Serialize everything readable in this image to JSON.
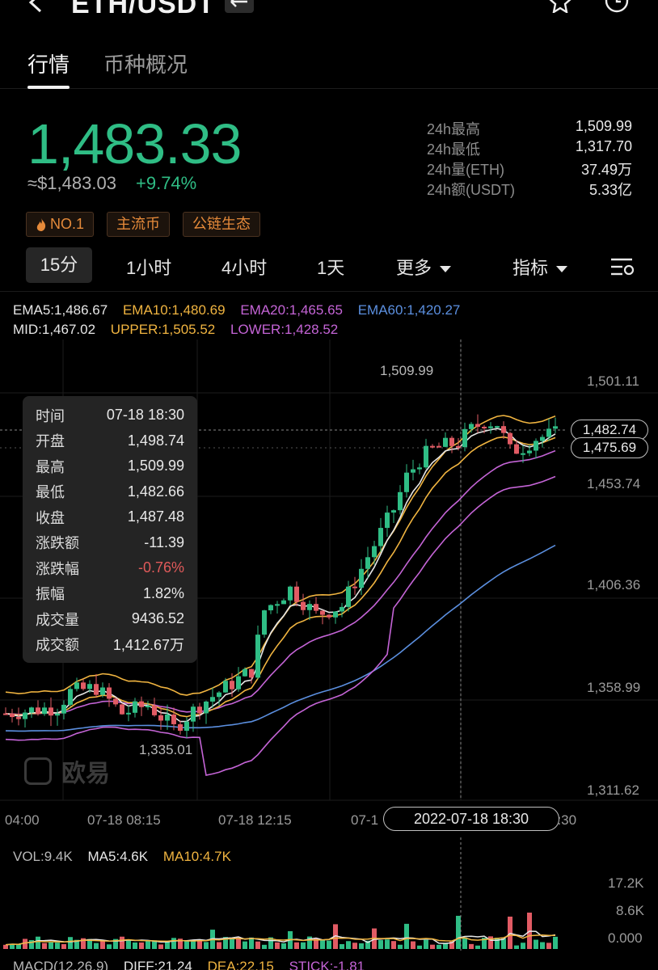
{
  "header": {
    "title": "ETH/USDT"
  },
  "tabs": [
    {
      "label": "行情"
    },
    {
      "label": "币种概况"
    }
  ],
  "price": {
    "last": "1,483.33",
    "fiat": "≈$1,483.03",
    "change": "+9.74%"
  },
  "stats": [
    {
      "label": "24h最高",
      "value": "1,509.99"
    },
    {
      "label": "24h最低",
      "value": "1,317.70"
    },
    {
      "label": "24h量(ETH)",
      "value": "37.49万"
    },
    {
      "label": "24h额(USDT)",
      "value": "5.33亿"
    }
  ],
  "tags": [
    {
      "label": "NO.1"
    },
    {
      "label": "主流币"
    },
    {
      "label": "公链生态"
    }
  ],
  "intervals": {
    "m15": "15分",
    "h1": "1小时",
    "h4": "4小时",
    "d1": "1天",
    "more": "更多",
    "indicators": "指标"
  },
  "indicators": {
    "ema5": "EMA5:1,486.67",
    "ema10": "EMA10:1,480.69",
    "ema20": "EMA20:1,465.65",
    "ema60": "EMA60:1,420.27",
    "mid": "MID:1,467.02",
    "upper": "UPPER:1,505.52",
    "lower": "LOWER:1,428.52"
  },
  "price_axis": {
    "p1": "1,501.11",
    "p2": "1,453.74",
    "p3": "1,406.36",
    "p4": "1,358.99",
    "p5": "1,311.62"
  },
  "markers": {
    "high": "1,509.99",
    "low": "1,335.01"
  },
  "price_tags": {
    "upper": "1,482.74",
    "lower": "1,475.69"
  },
  "time_axis": {
    "t1": "04:00",
    "t2": "07-18 08:15",
    "t3": "07-18 12:15",
    "t4": "07-1",
    "t5": "0:30"
  },
  "crosshair_time": "2022-07-18 18:30",
  "tooltip": [
    {
      "label": "时间",
      "value": "07-18 18:30"
    },
    {
      "label": "开盘",
      "value": "1,498.74"
    },
    {
      "label": "最高",
      "value": "1,509.99"
    },
    {
      "label": "最低",
      "value": "1,482.66"
    },
    {
      "label": "收盘",
      "value": "1,487.48"
    },
    {
      "label": "涨跌额",
      "value": "-11.39"
    },
    {
      "label": "涨跌幅",
      "value": "-0.76%"
    },
    {
      "label": "振幅",
      "value": "1.82%"
    },
    {
      "label": "成交量",
      "value": "9436.52"
    },
    {
      "label": "成交额",
      "value": "1,412.67万"
    }
  ],
  "watermark": "欧易",
  "volume": {
    "vol": "VOL:9.4K",
    "ma5": "MA5:4.6K",
    "ma10": "MA10:4.7K",
    "axis_top": "17.2K",
    "axis_mid": "8.6K",
    "axis_bottom": "0.000"
  },
  "macd": {
    "label": "MACD(12,26,9)",
    "diff": "DIFF:21.24",
    "dea": "DEA:22.15",
    "stick": "STICK:-1.81"
  },
  "colors": {
    "up": "#2fbd85",
    "down": "#e15b64",
    "ema5": "#e6e6e6",
    "ema10": "#f0b440",
    "ema20": "#c464d6",
    "ema60": "#5b8fdf",
    "tag": "#e58a3a"
  }
}
